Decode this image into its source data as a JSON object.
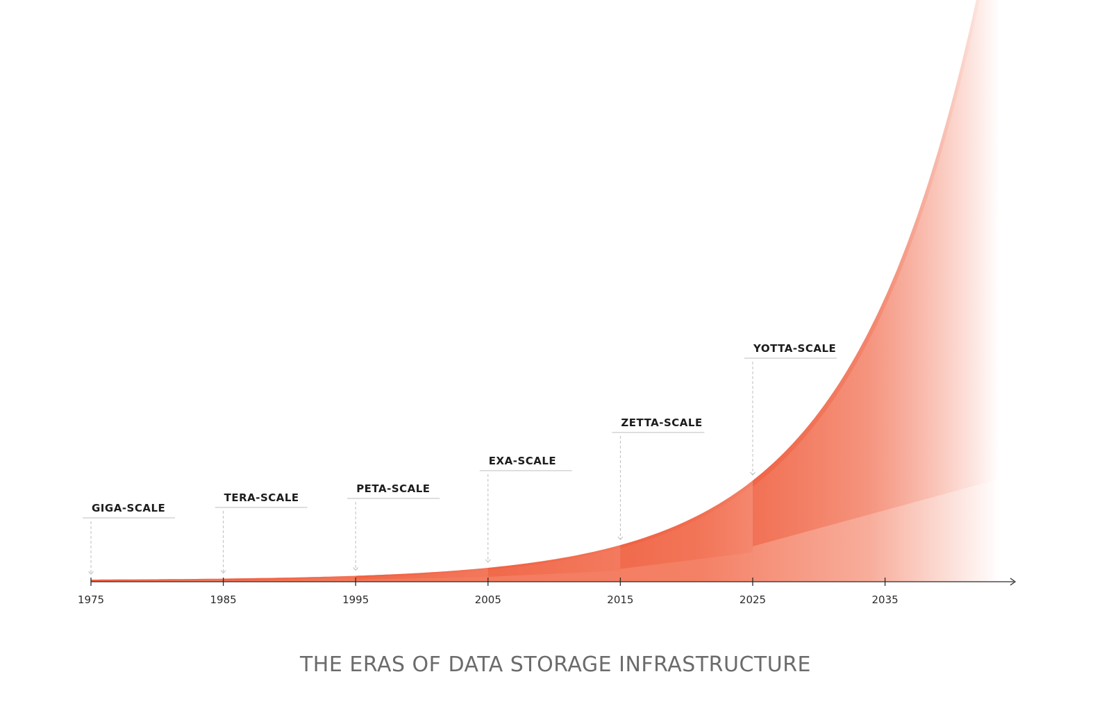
{
  "chart_data": {
    "type": "area",
    "title": "THE ERAS OF DATA STORAGE INFRASTRUCTURE",
    "xlabel": "",
    "ylabel": "",
    "x_ticks": [
      1975,
      1985,
      1995,
      2005,
      2015,
      2025,
      2035
    ],
    "x_tick_labels": [
      "1975",
      "1985",
      "1995",
      "2005",
      "2015",
      "2025",
      "2035"
    ],
    "xlim": [
      1975,
      2045
    ],
    "grid": false,
    "legend": "none",
    "eras": [
      {
        "name": "GIGA-SCALE",
        "start": 1975
      },
      {
        "name": "TERA-SCALE",
        "start": 1985
      },
      {
        "name": "PETA-SCALE",
        "start": 1995
      },
      {
        "name": "EXA-SCALE",
        "start": 2005
      },
      {
        "name": "ZETTA-SCALE",
        "start": 2015
      },
      {
        "name": "YOTTA-SCALE",
        "start": 2025
      }
    ],
    "colors": {
      "accent": "#f26a4a",
      "accent_dark": "#ee5a3a",
      "axis": "#2a2a2a",
      "leader": "#bdbdbd",
      "title": "#6b6b6b"
    }
  }
}
